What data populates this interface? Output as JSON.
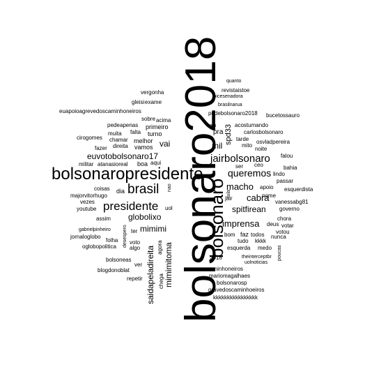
{
  "wordcloud": {
    "words": [
      "bolsonaro2018",
      "bolsonaropresidente",
      "bolsonaro",
      "brasil",
      "presidente",
      "jairbolsonaro",
      "euvotobolsonaro17",
      "queremos",
      "macho",
      "globolixo",
      "imprensa",
      "spitfirean",
      "mimimi",
      "mimimitoma",
      "saidapeladireita",
      "cabra",
      "spd33",
      "mil",
      "vai",
      "euapoioagrevedoscaminhoneiros",
      "vergonha",
      "gleisi",
      "exame",
      "sobre",
      "acima",
      "pede",
      "apenas",
      "primeiro",
      "muita",
      "falta",
      "turno",
      "cirogomes",
      "chamar",
      "melhor",
      "fazer",
      "direita",
      "vamos",
      "militar",
      "atanasioreal",
      "boa",
      "aqui",
      "coisas",
      "dia",
      "majorvitorhugo",
      "vezes",
      "youtube",
      "assim",
      "gabrielpinheiro",
      "jornaloglobo",
      "oglobopolitica",
      "folha",
      "desespero",
      "ter",
      "voto",
      "algo",
      "agora",
      "nao",
      "uol",
      "bolsoneas",
      "blogdonoblat",
      "ver",
      "repetir",
      "chega",
      "quanto",
      "revistaistoe",
      "joicesenadora",
      "brasilnarua",
      "podebolsonaro2018",
      "bucetossauro",
      "hein",
      "acostumando",
      "pra",
      "carlosbolsonaro",
      "tarde",
      "osvladpereira",
      "mito",
      "noite",
      "falou",
      "bahia",
      "ceo",
      "ser",
      "lindo",
      "passar",
      "apoio",
      "esquerdista",
      "lula",
      "nome",
      "jair",
      "vanessabg81",
      "governo",
      "deus",
      "votar",
      "votou",
      "bom",
      "faz",
      "todos",
      "nunca",
      "tudo",
      "kkkk",
      "esquerda",
      "medo",
      "poucas",
      "chora",
      "2018",
      "theinterceptbr",
      "uolnoticias",
      "caminhoneiros",
      "mariomagalhaes",
      "bolsonarosp",
      "gravedoscaminhoeiros",
      "kkkkkkkkkkkkkkkk"
    ]
  }
}
